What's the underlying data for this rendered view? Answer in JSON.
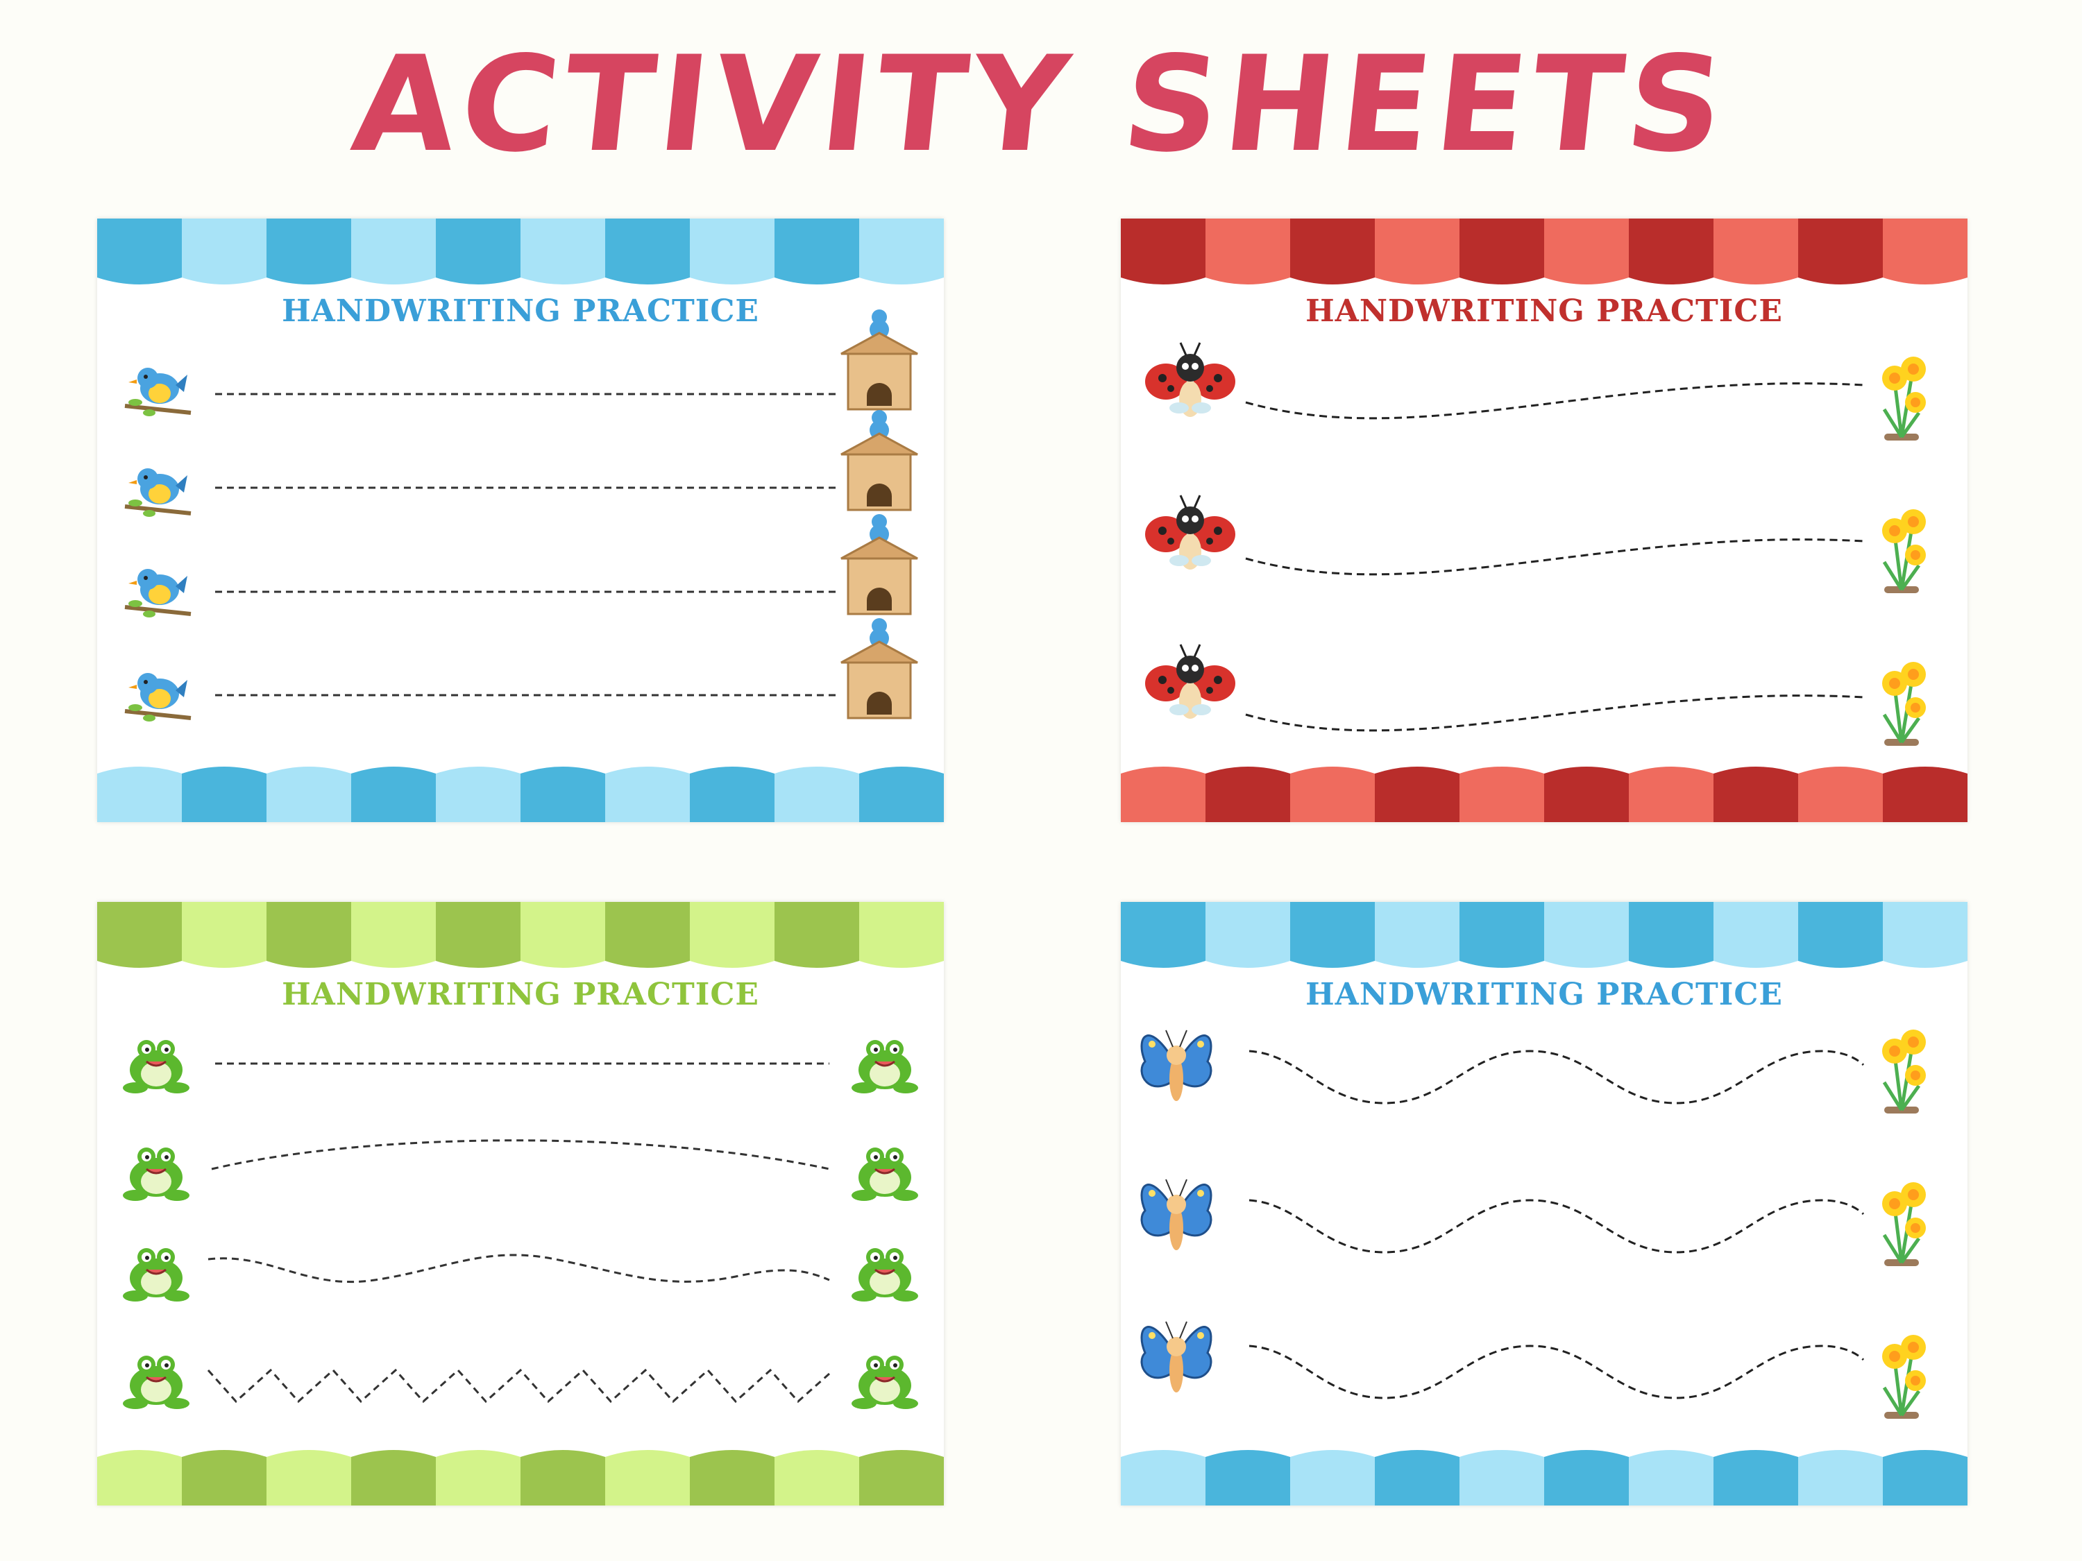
{
  "page": {
    "title": "ACTIVITY SHEETS"
  },
  "sheets": [
    {
      "title": "HANDWRITING PRACTICE",
      "title_color": "#3a9fd8",
      "color_a": "#4ab5dc",
      "color_b": "#a8e3f7",
      "start_icon": "bird-on-branch-icon",
      "end_icon": "birdhouse-icon",
      "lines": [
        "straight",
        "straight",
        "straight",
        "straight"
      ]
    },
    {
      "title": "HANDWRITING PRACTICE",
      "title_color": "#c0302d",
      "color_a": "#b92d2b",
      "color_b": "#ef6b5e",
      "start_icon": "ladybug-icon",
      "end_icon": "daffodil-icon",
      "lines": [
        "gentle-wave",
        "gentle-wave",
        "gentle-wave"
      ]
    },
    {
      "title": "HANDWRITING PRACTICE",
      "title_color": "#8fc43c",
      "color_a": "#9cc44e",
      "color_b": "#d3f38a",
      "start_icon": "frog-icon",
      "end_icon": "frog-icon",
      "lines": [
        "straight",
        "arc",
        "wave",
        "zigzag"
      ]
    },
    {
      "title": "HANDWRITING PRACTICE",
      "title_color": "#3a9fd8",
      "color_a": "#4ab5dc",
      "color_b": "#a8e3f7",
      "start_icon": "butterfly-icon",
      "end_icon": "daffodil-icon",
      "lines": [
        "wave",
        "wave",
        "wave"
      ]
    }
  ]
}
